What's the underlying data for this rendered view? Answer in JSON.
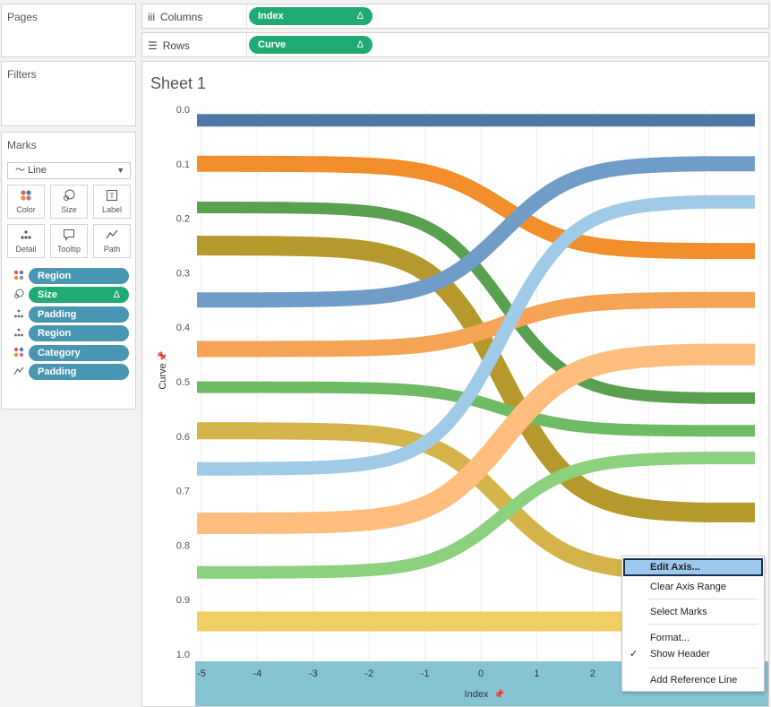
{
  "pages": {
    "title": "Pages"
  },
  "filters": {
    "title": "Filters"
  },
  "marks": {
    "title": "Marks",
    "type": "Line",
    "buttons": [
      {
        "label": "Color",
        "icon": "color-dots-icon"
      },
      {
        "label": "Size",
        "icon": "size-icon"
      },
      {
        "label": "Label",
        "icon": "label-icon"
      },
      {
        "label": "Detail",
        "icon": "detail-icon"
      },
      {
        "label": "Tooltip",
        "icon": "tooltip-icon"
      },
      {
        "label": "Path",
        "icon": "path-icon"
      }
    ],
    "fields": [
      {
        "icon": "color-dots-icon",
        "label": "Region",
        "color": "#4996b2",
        "delta": ""
      },
      {
        "icon": "size-icon",
        "label": "Size",
        "color": "#1fab73",
        "delta": "Δ"
      },
      {
        "icon": "detail-icon",
        "label": "Padding",
        "color": "#4996b2",
        "delta": ""
      },
      {
        "icon": "detail-icon",
        "label": "Region",
        "color": "#4996b2",
        "delta": ""
      },
      {
        "icon": "color-dots-icon",
        "label": "Category",
        "color": "#4996b2",
        "delta": ""
      },
      {
        "icon": "path-icon",
        "label": "Padding",
        "color": "#4996b2",
        "delta": ""
      }
    ]
  },
  "shelves": {
    "columns": {
      "label": "Columns",
      "pill": "Index",
      "delta": "Δ"
    },
    "rows": {
      "label": "Rows",
      "pill": "Curve",
      "delta": "Δ"
    }
  },
  "sheet": {
    "title": "Sheet 1"
  },
  "chart_data": {
    "type": "line",
    "xlabel": "Index",
    "ylabel": "Curve",
    "xlim": [
      -5,
      5
    ],
    "ylim": [
      0.0,
      1.0
    ],
    "y_reversed": true,
    "x_ticks": [
      "-5",
      "-4",
      "-3",
      "-2",
      "-1",
      "0",
      "1",
      "2"
    ],
    "y_ticks": [
      "0.0",
      "0.1",
      "0.2",
      "0.3",
      "0.4",
      "0.5",
      "0.6",
      "0.7",
      "0.8",
      "0.9",
      "1.0"
    ],
    "grid": true,
    "series": [
      {
        "color": "#4e79a7",
        "start": 0.02,
        "end": 0.02,
        "width": 14
      },
      {
        "color": "#f28e2b",
        "start": 0.1,
        "end": 0.26,
        "width": 18
      },
      {
        "color": "#59a14f",
        "start": 0.18,
        "end": 0.53,
        "width": 13
      },
      {
        "color": "#b6992d",
        "start": 0.25,
        "end": 0.74,
        "width": 22
      },
      {
        "color": "#6f9dc8",
        "start": 0.35,
        "end": 0.1,
        "width": 17
      },
      {
        "color": "#f5a455",
        "start": 0.44,
        "end": 0.35,
        "width": 18
      },
      {
        "color": "#6dbb63",
        "start": 0.51,
        "end": 0.59,
        "width": 13
      },
      {
        "color": "#d4b44a",
        "start": 0.59,
        "end": 0.85,
        "width": 19
      },
      {
        "color": "#a0cbe8",
        "start": 0.66,
        "end": 0.17,
        "width": 15
      },
      {
        "color": "#ffbe7d",
        "start": 0.76,
        "end": 0.45,
        "width": 24
      },
      {
        "color": "#8cd17d",
        "start": 0.85,
        "end": 0.64,
        "width": 14
      },
      {
        "color": "#f1ce63",
        "start": 0.94,
        "end": 0.94,
        "width": 22
      }
    ]
  },
  "context_menu": {
    "items": [
      {
        "label": "Edit Axis...",
        "highlighted": true
      },
      {
        "label": "Clear Axis Range"
      },
      {
        "label": "Select Marks"
      },
      {
        "label": "Format..."
      },
      {
        "label": "Show Header",
        "checked": true
      },
      {
        "label": "Add Reference Line"
      }
    ],
    "check": "✓"
  },
  "axis_band_color": "#86c4d4"
}
